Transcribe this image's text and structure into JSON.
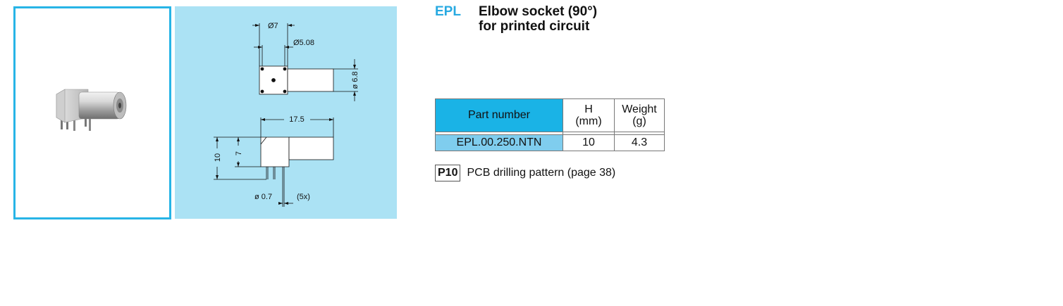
{
  "product": {
    "code": "EPL",
    "title_line1": "Elbow socket (90°)",
    "title_line2": "for printed circuit"
  },
  "drawing": {
    "dim_outer_diameter": "Ø7",
    "dim_inner_diameter": "Ø5.08",
    "dim_body_diameter": "ø 6.8",
    "dim_length": "17.5",
    "dim_total_height": "10",
    "dim_body_height": "7",
    "dim_pin_diameter": "ø 0.7",
    "dim_pin_count": "(5x)"
  },
  "table": {
    "headers": {
      "part_number": "Part number",
      "h_line1": "H",
      "h_line2": "(mm)",
      "weight_line1": "Weight",
      "weight_line2": "(g)"
    },
    "rows": [
      {
        "part_number": "EPL.00.250.NTN",
        "h": "10",
        "weight": "4.3"
      }
    ]
  },
  "note": {
    "code": "P10",
    "text": "PCB drilling pattern (page 38)"
  },
  "colors": {
    "accent": "#27a9e1",
    "header_fill": "#1ab3e6",
    "row_fill": "#7fcdee",
    "drawing_bg": "#abe2f4"
  }
}
